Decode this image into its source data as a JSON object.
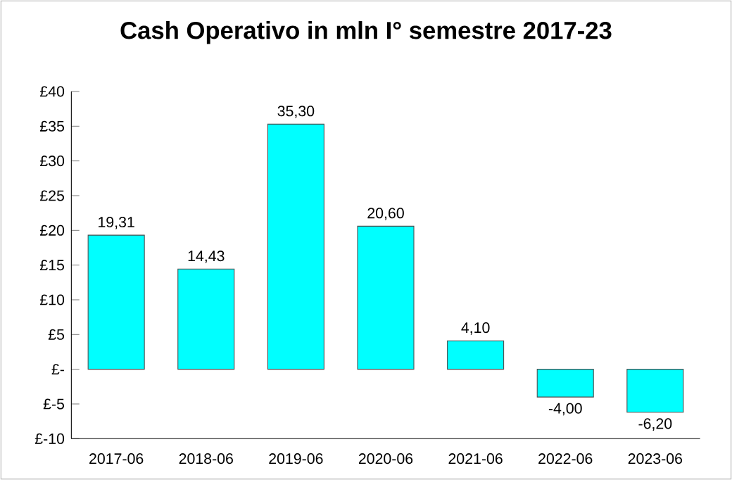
{
  "chart_data": {
    "type": "bar",
    "title": "Cash Operativo in mln I° semestre 2017-23",
    "categories": [
      "2017-06",
      "2018-06",
      "2019-06",
      "2020-06",
      "2021-06",
      "2022-06",
      "2023-06"
    ],
    "values": [
      19.31,
      14.43,
      35.3,
      20.6,
      4.1,
      -4.0,
      -6.2
    ],
    "value_labels": [
      "19,31",
      "14,43",
      "35,30",
      "20,60",
      "4,10",
      "-4,00",
      "-6,20"
    ],
    "color": "#00ffff",
    "ylim": [
      -10,
      40
    ],
    "yticks": [
      {
        "value": -10,
        "label": "£-10"
      },
      {
        "value": -5,
        "label": "£-5"
      },
      {
        "value": 0,
        "label": "£-"
      },
      {
        "value": 5,
        "label": "£5"
      },
      {
        "value": 10,
        "label": "£10"
      },
      {
        "value": 15,
        "label": "£15"
      },
      {
        "value": 20,
        "label": "£20"
      },
      {
        "value": 25,
        "label": "£25"
      },
      {
        "value": 30,
        "label": "£30"
      },
      {
        "value": 35,
        "label": "£35"
      },
      {
        "value": 40,
        "label": "£40"
      }
    ],
    "grid": false
  }
}
